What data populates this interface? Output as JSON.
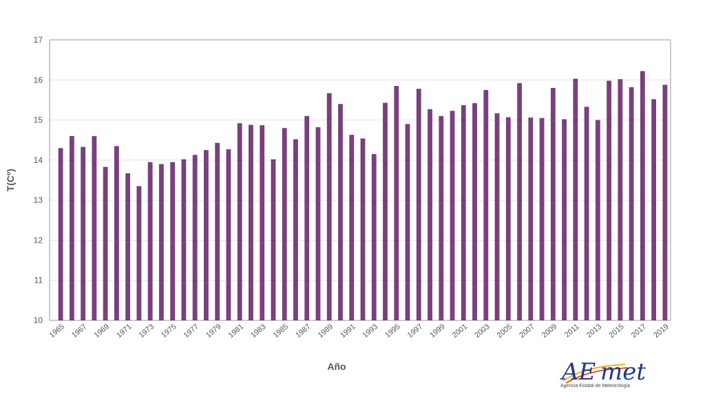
{
  "chart_data": {
    "type": "bar",
    "title": "",
    "xlabel": "Año",
    "ylabel": "T(Cº)",
    "ylim": [
      10,
      17
    ],
    "yticks": [
      10,
      11,
      12,
      13,
      14,
      15,
      16,
      17
    ],
    "grid": true,
    "bar_color": "#7b3f7f",
    "categories": [
      "1965",
      "1966",
      "1967",
      "1968",
      "1969",
      "1970",
      "1971",
      "1972",
      "1973",
      "1974",
      "1975",
      "1976",
      "1977",
      "1978",
      "1979",
      "1980",
      "1981",
      "1982",
      "1983",
      "1984",
      "1985",
      "1986",
      "1987",
      "1988",
      "1989",
      "1990",
      "1991",
      "1992",
      "1993",
      "1994",
      "1995",
      "1996",
      "1997",
      "1998",
      "1999",
      "2000",
      "2001",
      "2002",
      "2003",
      "2004",
      "2005",
      "2006",
      "2007",
      "2008",
      "2009",
      "2010",
      "2011",
      "2012",
      "2013",
      "2014",
      "2015",
      "2016",
      "2017",
      "2018",
      "2019"
    ],
    "values": [
      14.3,
      14.6,
      14.33,
      14.6,
      13.83,
      14.35,
      13.67,
      13.35,
      13.95,
      13.9,
      13.95,
      14.02,
      14.13,
      14.25,
      14.43,
      14.27,
      14.92,
      14.88,
      14.87,
      14.02,
      14.8,
      14.52,
      15.1,
      14.82,
      15.67,
      15.4,
      14.63,
      14.54,
      14.15,
      15.43,
      15.85,
      14.9,
      15.78,
      15.27,
      15.1,
      15.23,
      15.37,
      15.42,
      15.75,
      15.17,
      15.07,
      15.92,
      15.06,
      15.05,
      15.8,
      15.02,
      16.03,
      15.33,
      15.0,
      15.98,
      16.02,
      15.82,
      16.22,
      15.52,
      15.88
    ]
  },
  "logo": {
    "text_a": "AE",
    "text_b": "met",
    "caption": "Agencia Estatal de Meteorología"
  }
}
